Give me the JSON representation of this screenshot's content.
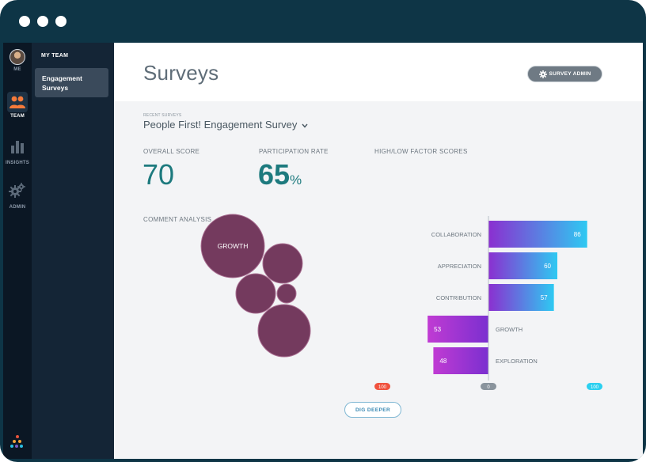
{
  "window": {
    "controls": [
      "dot",
      "dot",
      "dot"
    ]
  },
  "rail": {
    "items": [
      {
        "label": "ME",
        "icon": "avatar"
      },
      {
        "label": "TEAM",
        "icon": "team-icon",
        "active": true
      },
      {
        "label": "INSIGHTS",
        "icon": "bar-chart-icon"
      },
      {
        "label": "ADMIN",
        "icon": "gears-icon"
      }
    ],
    "brand_colors": [
      "#e8543c",
      "#f2a23a",
      "#2bbfe3",
      "#7c5cc4"
    ]
  },
  "subnav": {
    "heading": "MY TEAM",
    "items": [
      {
        "label": "Engagement Surveys",
        "active": true
      }
    ]
  },
  "header": {
    "title": "Surveys",
    "admin_button": "SURVEY ADMIN"
  },
  "survey": {
    "recent_label": "RECENT SURVEYS",
    "selected": "People First! Engagement Survey"
  },
  "metrics": {
    "overall_label": "OVERALL SCORE",
    "overall_value": "70",
    "participation_label": "PARTICIPATION RATE",
    "participation_value": "65",
    "participation_unit": "%"
  },
  "comments": {
    "label": "COMMENT ANALYSIS",
    "bubbles": [
      {
        "label": "GROWTH"
      }
    ]
  },
  "chart_data": {
    "type": "bar",
    "title": "HIGH/LOW FACTOR SCORES",
    "categories": [
      "COLLABORATION",
      "APPRECIATION",
      "CONTRIBUTION",
      "GROWTH",
      "EXPLORATION"
    ],
    "values": [
      86,
      60,
      57,
      -53,
      -48
    ],
    "value_labels": [
      "86",
      "60",
      "57",
      "53",
      "48"
    ],
    "xlim": [
      -100,
      100
    ],
    "axis_labels": {
      "min": "100",
      "zero": "0",
      "max": "100"
    },
    "colors": {
      "positive_start": "#8b2fd0",
      "positive_end": "#2ec9f2",
      "negative_start": "#c03bd3",
      "negative_end": "#7b2fd0"
    }
  },
  "actions": {
    "dig_deeper": "DIG DEEPER"
  }
}
